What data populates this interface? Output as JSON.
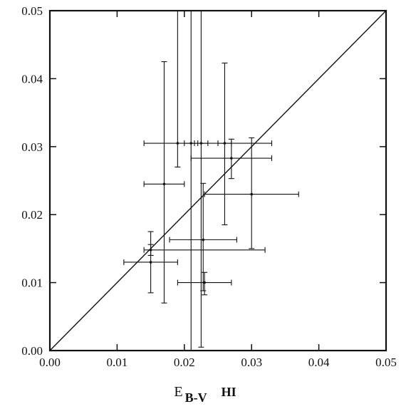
{
  "chart_data": {
    "type": "scatter",
    "title": "",
    "xlabel": {
      "main": "E",
      "sub": "B-V",
      "suffix": "HI"
    },
    "ylabel": "",
    "xlim": [
      0.0,
      0.05
    ],
    "ylim": [
      0.0,
      0.05
    ],
    "x_ticks": [
      "0.00",
      "0.01",
      "0.02",
      "0.03",
      "0.04",
      "0.05"
    ],
    "y_ticks": [
      "0.00",
      "0.01",
      "0.02",
      "0.03",
      "0.04",
      "0.05"
    ],
    "grid": false,
    "legend": "none",
    "reference_line": {
      "label": "",
      "x": [
        0.0,
        0.05
      ],
      "y": [
        0.0,
        0.05
      ]
    },
    "points": [
      {
        "x": 0.015,
        "y": 0.013,
        "xerr": [
          0.004,
          0.004
        ],
        "yerr": [
          0.0045,
          0.0045
        ]
      },
      {
        "x": 0.015,
        "y": 0.0148,
        "xerr": [
          0.001,
          0.017
        ],
        "yerr": [
          0.0008,
          0.0008
        ]
      },
      {
        "x": 0.017,
        "y": 0.0245,
        "xerr": [
          0.003,
          0.003
        ],
        "yerr": [
          0.0175,
          0.018
        ]
      },
      {
        "x": 0.019,
        "y": 0.0305,
        "xerr": [
          0.005,
          0.014
        ],
        "yerr": [
          0.0035,
          0.04
        ]
      },
      {
        "x": 0.021,
        "y": 0.0305,
        "xerr": [
          0.001,
          0.001
        ],
        "yerr": [
          0.031,
          0.04
        ]
      },
      {
        "x": 0.0225,
        "y": 0.0305,
        "xerr": [
          0.001,
          0.001
        ],
        "yerr": [
          0.03,
          0.04
        ]
      },
      {
        "x": 0.0228,
        "y": 0.0163,
        "xerr": [
          0.005,
          0.005
        ],
        "yerr": [
          0.0075,
          0.0083
        ]
      },
      {
        "x": 0.023,
        "y": 0.01,
        "xerr": [
          0.004,
          0.004
        ],
        "yerr": [
          0.0018,
          0.0015
        ]
      },
      {
        "x": 0.026,
        "y": 0.0305,
        "xerr": [
          0.001,
          0.001
        ],
        "yerr": [
          0.012,
          0.0118
        ]
      },
      {
        "x": 0.027,
        "y": 0.0283,
        "xerr": [
          0.006,
          0.006
        ],
        "yerr": [
          0.003,
          0.0028
        ]
      },
      {
        "x": 0.03,
        "y": 0.023,
        "xerr": [
          0.007,
          0.007
        ],
        "yerr": [
          0.008,
          0.0083
        ]
      }
    ]
  }
}
